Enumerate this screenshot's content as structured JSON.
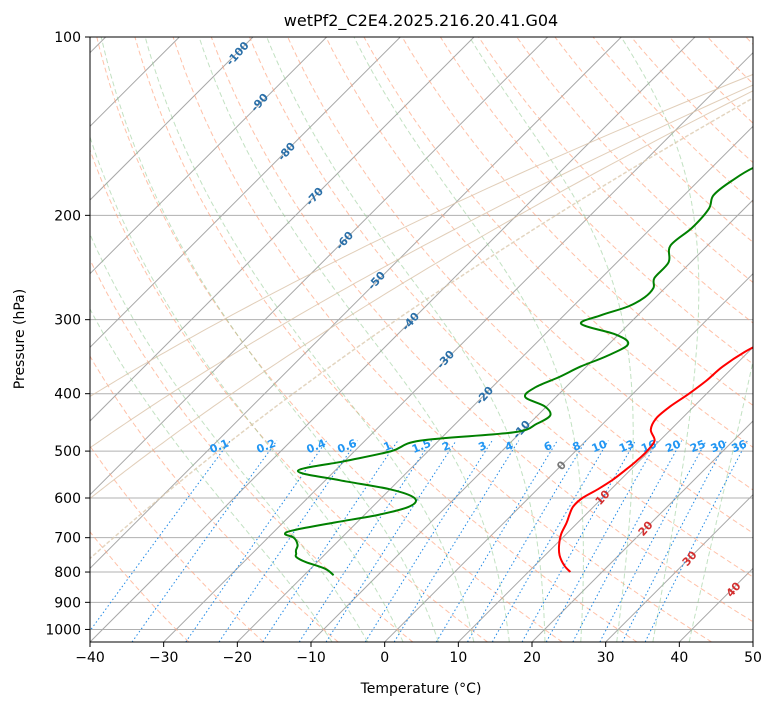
{
  "chart_data": {
    "type": "line",
    "title": "wetPf2_C2E4.2025.216.20.41.G04",
    "xlabel": "Temperature (°C)",
    "ylabel": "Pressure (hPa)",
    "xlim": [
      -40,
      50
    ],
    "ylim": [
      1050,
      100
    ],
    "y_scale": "log",
    "grid": true,
    "x_ticks": [
      -40,
      -30,
      -20,
      -10,
      0,
      10,
      20,
      30,
      40,
      50
    ],
    "y_ticks": [
      100,
      200,
      300,
      400,
      500,
      600,
      700,
      800,
      900,
      1000
    ],
    "skew": "isotherms skewed 45°",
    "series": [
      {
        "color": "#ff0000",
        "p": [
          800,
          780,
          750,
          720,
          690,
          660,
          640,
          620,
          600,
          580,
          560,
          540,
          520,
          500,
          480,
          460,
          440,
          420,
          400,
          380,
          360,
          340,
          320,
          300,
          280,
          260,
          240,
          220,
          200,
          185,
          170,
          160,
          150,
          140,
          130,
          120,
          110,
          100
        ],
        "t": [
          15.7,
          14.0,
          12.0,
          10.5,
          9.3,
          8.5,
          7.8,
          7.2,
          7.3,
          8.2,
          8.9,
          9.3,
          9.6,
          9.7,
          9.3,
          7.3,
          6.5,
          6.8,
          7.6,
          8.2,
          8.5,
          9.5,
          11.3,
          12.0,
          10.3,
          9.7,
          9.3,
          9.0,
          8.8,
          9.5,
          11.5,
          12.0,
          10.5,
          8.0,
          8.5,
          9.8,
          10.2,
          12.5
        ]
      },
      {
        "color": "#008000",
        "p": [
          810,
          790,
          770,
          755,
          745,
          735,
          720,
          700,
          690,
          680,
          660,
          640,
          620,
          600,
          580,
          560,
          540,
          520,
          500,
          480,
          465,
          450,
          435,
          420,
          405,
          390,
          375,
          360,
          345,
          330,
          318,
          305,
          295,
          285,
          275,
          265,
          255,
          240,
          225,
          210,
          195,
          185,
          175,
          165,
          155,
          145,
          135,
          125,
          115,
          105,
          100
        ],
        "t": [
          -16.0,
          -18.0,
          -21.5,
          -23.5,
          -24.0,
          -24.5,
          -25.0,
          -26.5,
          -28.2,
          -27.5,
          -23.0,
          -18.0,
          -15.0,
          -15.5,
          -20.0,
          -28.0,
          -35.0,
          -30.0,
          -25.0,
          -22.5,
          -11.0,
          -9.0,
          -8.3,
          -10.3,
          -14.2,
          -14.1,
          -12.3,
          -10.8,
          -8.6,
          -7.4,
          -10.3,
          -16.5,
          -15.0,
          -12.5,
          -11.5,
          -11.6,
          -12.8,
          -13.0,
          -15.0,
          -14.5,
          -14.8,
          -16.0,
          -15.5,
          -14.0,
          -9.5,
          -6.5,
          -4.5,
          -3.0,
          -1.5,
          0.5,
          1.5
        ]
      }
    ],
    "dry_adiabat_labels": [
      "-100",
      "-90",
      "-80",
      "-70",
      "-60",
      "-50",
      "-40",
      "-30",
      "-20",
      "-10",
      "0",
      "10",
      "20",
      "30",
      "40"
    ],
    "mixing_ratio_labels": [
      "0.1",
      "0.2",
      "0.4",
      "0.6",
      "1",
      "1.5",
      "2",
      "3",
      "4",
      "6",
      "8",
      "10",
      "13",
      "16",
      "20",
      "25",
      "30",
      "36"
    ]
  }
}
